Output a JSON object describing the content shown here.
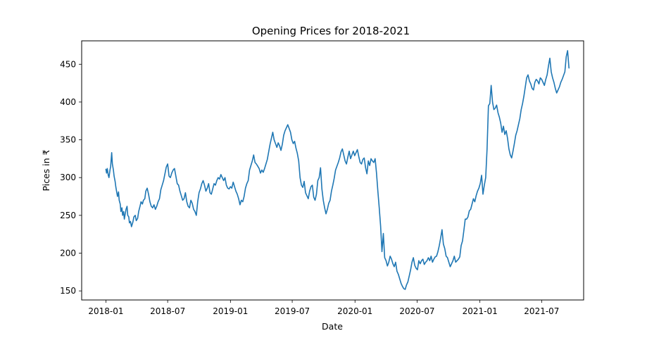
{
  "chart_data": {
    "type": "line",
    "title": "Opening Prices for 2018-2021",
    "xlabel": "Date",
    "ylabel": "Pices in ₹",
    "x_ticks": [
      "2018-01",
      "2018-07",
      "2019-01",
      "2019-07",
      "2020-01",
      "2020-07",
      "2021-01",
      "2021-07"
    ],
    "y_ticks": [
      150,
      200,
      250,
      300,
      350,
      400,
      450
    ],
    "xlim": [
      "2017-10-22",
      "2021-11-01"
    ],
    "ylim": [
      138,
      481
    ],
    "grid": false,
    "legend": "none",
    "line_color": "#1f77b4",
    "series": [
      {
        "x": [
          "2018-01-01",
          "2018-01-03",
          "2018-01-05",
          "2018-01-08",
          "2018-01-10",
          "2018-01-13",
          "2018-01-15",
          "2018-01-18",
          "2018-01-20",
          "2018-01-23",
          "2018-01-25",
          "2018-01-28",
          "2018-01-30",
          "2018-02-02",
          "2018-02-04",
          "2018-02-07",
          "2018-02-09",
          "2018-02-12",
          "2018-02-14",
          "2018-02-17",
          "2018-02-19",
          "2018-02-22",
          "2018-02-24",
          "2018-02-27",
          "2018-03-01",
          "2018-03-04",
          "2018-03-06",
          "2018-03-09",
          "2018-03-11",
          "2018-03-14",
          "2018-03-17",
          "2018-03-21",
          "2018-03-24",
          "2018-03-28",
          "2018-03-31",
          "2018-04-04",
          "2018-04-07",
          "2018-04-11",
          "2018-04-14",
          "2018-04-18",
          "2018-04-21",
          "2018-04-25",
          "2018-04-28",
          "2018-05-02",
          "2018-05-06",
          "2018-05-10",
          "2018-05-14",
          "2018-05-18",
          "2018-05-22",
          "2018-05-26",
          "2018-05-30",
          "2018-06-03",
          "2018-06-07",
          "2018-06-11",
          "2018-06-15",
          "2018-06-19",
          "2018-06-23",
          "2018-06-27",
          "2018-07-01",
          "2018-07-05",
          "2018-07-09",
          "2018-07-13",
          "2018-07-17",
          "2018-07-21",
          "2018-07-25",
          "2018-07-29",
          "2018-08-02",
          "2018-08-06",
          "2018-08-10",
          "2018-08-14",
          "2018-08-18",
          "2018-08-22",
          "2018-08-26",
          "2018-08-30",
          "2018-09-03",
          "2018-09-07",
          "2018-09-11",
          "2018-09-15",
          "2018-09-19",
          "2018-09-23",
          "2018-09-27",
          "2018-10-01",
          "2018-10-05",
          "2018-10-09",
          "2018-10-13",
          "2018-10-17",
          "2018-10-21",
          "2018-10-25",
          "2018-10-29",
          "2018-11-02",
          "2018-11-06",
          "2018-11-10",
          "2018-11-14",
          "2018-11-18",
          "2018-11-22",
          "2018-11-26",
          "2018-11-30",
          "2018-12-04",
          "2018-12-08",
          "2018-12-12",
          "2018-12-16",
          "2018-12-20",
          "2018-12-24",
          "2018-12-28",
          "2019-01-01",
          "2019-01-05",
          "2019-01-09",
          "2019-01-13",
          "2019-01-17",
          "2019-01-21",
          "2019-01-25",
          "2019-01-29",
          "2019-02-02",
          "2019-02-06",
          "2019-02-10",
          "2019-02-14",
          "2019-02-18",
          "2019-02-22",
          "2019-02-26",
          "2019-03-02",
          "2019-03-06",
          "2019-03-10",
          "2019-03-14",
          "2019-03-18",
          "2019-03-22",
          "2019-03-26",
          "2019-03-30",
          "2019-04-03",
          "2019-04-07",
          "2019-04-11",
          "2019-04-15",
          "2019-04-19",
          "2019-04-23",
          "2019-04-27",
          "2019-05-01",
          "2019-05-05",
          "2019-05-09",
          "2019-05-13",
          "2019-05-17",
          "2019-05-21",
          "2019-05-25",
          "2019-05-29",
          "2019-06-02",
          "2019-06-06",
          "2019-06-10",
          "2019-06-14",
          "2019-06-18",
          "2019-06-22",
          "2019-06-26",
          "2019-06-30",
          "2019-07-04",
          "2019-07-08",
          "2019-07-12",
          "2019-07-16",
          "2019-07-20",
          "2019-07-24",
          "2019-07-28",
          "2019-08-01",
          "2019-08-05",
          "2019-08-09",
          "2019-08-13",
          "2019-08-17",
          "2019-08-21",
          "2019-08-25",
          "2019-08-29",
          "2019-09-02",
          "2019-09-06",
          "2019-09-10",
          "2019-09-14",
          "2019-09-18",
          "2019-09-22",
          "2019-09-26",
          "2019-09-30",
          "2019-10-04",
          "2019-10-08",
          "2019-10-12",
          "2019-10-16",
          "2019-10-20",
          "2019-10-24",
          "2019-10-28",
          "2019-11-01",
          "2019-11-05",
          "2019-11-09",
          "2019-11-13",
          "2019-11-17",
          "2019-11-21",
          "2019-11-25",
          "2019-11-29",
          "2019-12-03",
          "2019-12-07",
          "2019-12-11",
          "2019-12-15",
          "2019-12-19",
          "2019-12-23",
          "2019-12-27",
          "2019-12-31",
          "2020-01-04",
          "2020-01-08",
          "2020-01-12",
          "2020-01-16",
          "2020-01-20",
          "2020-01-24",
          "2020-01-28",
          "2020-02-01",
          "2020-02-05",
          "2020-02-09",
          "2020-02-13",
          "2020-02-17",
          "2020-02-21",
          "2020-02-25",
          "2020-02-29",
          "2020-03-04",
          "2020-03-08",
          "2020-03-12",
          "2020-03-16",
          "2020-03-20",
          "2020-03-24",
          "2020-03-28",
          "2020-04-01",
          "2020-04-05",
          "2020-04-09",
          "2020-04-13",
          "2020-04-17",
          "2020-04-21",
          "2020-04-25",
          "2020-04-29",
          "2020-05-03",
          "2020-05-07",
          "2020-05-11",
          "2020-05-15",
          "2020-05-19",
          "2020-05-23",
          "2020-05-27",
          "2020-05-31",
          "2020-06-04",
          "2020-06-08",
          "2020-06-12",
          "2020-06-16",
          "2020-06-20",
          "2020-06-24",
          "2020-06-28",
          "2020-07-02",
          "2020-07-06",
          "2020-07-10",
          "2020-07-14",
          "2020-07-18",
          "2020-07-22",
          "2020-07-26",
          "2020-07-30",
          "2020-08-03",
          "2020-08-07",
          "2020-08-11",
          "2020-08-15",
          "2020-08-19",
          "2020-08-23",
          "2020-08-27",
          "2020-08-31",
          "2020-09-04",
          "2020-09-08",
          "2020-09-12",
          "2020-09-16",
          "2020-09-20",
          "2020-09-24",
          "2020-09-28",
          "2020-10-02",
          "2020-10-06",
          "2020-10-10",
          "2020-10-14",
          "2020-10-18",
          "2020-10-22",
          "2020-10-26",
          "2020-10-30",
          "2020-11-03",
          "2020-11-07",
          "2020-11-11",
          "2020-11-15",
          "2020-11-19",
          "2020-11-23",
          "2020-11-27",
          "2020-12-01",
          "2020-12-05",
          "2020-12-09",
          "2020-12-13",
          "2020-12-17",
          "2020-12-21",
          "2020-12-25",
          "2020-12-29",
          "2021-01-02",
          "2021-01-06",
          "2021-01-10",
          "2021-01-14",
          "2021-01-18",
          "2021-01-22",
          "2021-01-26",
          "2021-01-30",
          "2021-02-03",
          "2021-02-07",
          "2021-02-11",
          "2021-02-15",
          "2021-02-19",
          "2021-02-23",
          "2021-02-27",
          "2021-03-03",
          "2021-03-07",
          "2021-03-11",
          "2021-03-15",
          "2021-03-19",
          "2021-03-23",
          "2021-03-27",
          "2021-03-31",
          "2021-04-04",
          "2021-04-08",
          "2021-04-12",
          "2021-04-16",
          "2021-04-20",
          "2021-04-24",
          "2021-04-28",
          "2021-05-02",
          "2021-05-06",
          "2021-05-10",
          "2021-05-14",
          "2021-05-18",
          "2021-05-22",
          "2021-05-26",
          "2021-05-30",
          "2021-06-03",
          "2021-06-07",
          "2021-06-11",
          "2021-06-15",
          "2021-06-19",
          "2021-06-23",
          "2021-06-27",
          "2021-07-01",
          "2021-07-05",
          "2021-07-09",
          "2021-07-13",
          "2021-07-17",
          "2021-07-21",
          "2021-07-25",
          "2021-07-29",
          "2021-08-02",
          "2021-08-06",
          "2021-08-10",
          "2021-08-14",
          "2021-08-18",
          "2021-08-22",
          "2021-08-26",
          "2021-08-30",
          "2021-09-03",
          "2021-09-07",
          "2021-09-11",
          "2021-09-15",
          "2021-09-19"
        ],
        "y": [
          311,
          306,
          312,
          303,
          300,
          310,
          315,
          333,
          318,
          310,
          302,
          295,
          288,
          280,
          275,
          281,
          270,
          265,
          255,
          260,
          250,
          255,
          245,
          253,
          258,
          262,
          250,
          248,
          240,
          242,
          235,
          241,
          248,
          250,
          243,
          246,
          255,
          262,
          268,
          265,
          270,
          272,
          282,
          286,
          278,
          268,
          262,
          260,
          264,
          258,
          262,
          268,
          272,
          284,
          290,
          296,
          305,
          314,
          318,
          302,
          300,
          306,
          310,
          312,
          302,
          292,
          290,
          282,
          276,
          270,
          272,
          280,
          268,
          262,
          260,
          270,
          266,
          258,
          255,
          250,
          268,
          280,
          285,
          292,
          296,
          290,
          282,
          286,
          292,
          280,
          278,
          285,
          292,
          290,
          296,
          300,
          298,
          304,
          300,
          296,
          300,
          290,
          286,
          285,
          288,
          286,
          294,
          288,
          282,
          278,
          272,
          264,
          270,
          268,
          275,
          286,
          292,
          296,
          310,
          316,
          322,
          330,
          320,
          318,
          315,
          312,
          306,
          310,
          307,
          312,
          318,
          324,
          334,
          344,
          352,
          360,
          350,
          345,
          340,
          346,
          342,
          336,
          344,
          356,
          362,
          366,
          370,
          365,
          360,
          350,
          345,
          348,
          339,
          332,
          322,
          300,
          290,
          287,
          295,
          280,
          276,
          272,
          282,
          288,
          290,
          274,
          270,
          278,
          296,
          300,
          313,
          285,
          270,
          260,
          252,
          258,
          266,
          270,
          282,
          290,
          299,
          310,
          315,
          320,
          326,
          334,
          338,
          330,
          322,
          318,
          327,
          335,
          325,
          330,
          335,
          329,
          333,
          337,
          328,
          320,
          318,
          324,
          326,
          313,
          305,
          322,
          316,
          325,
          322,
          320,
          325,
          306,
          282,
          260,
          236,
          202,
          226,
          194,
          190,
          183,
          188,
          196,
          192,
          186,
          182,
          188,
          176,
          172,
          166,
          160,
          156,
          153,
          152,
          158,
          162,
          170,
          178,
          188,
          194,
          184,
          180,
          178,
          190,
          186,
          190,
          192,
          185,
          188,
          190,
          194,
          190,
          196,
          188,
          192,
          195,
          196,
          202,
          210,
          220,
          231,
          212,
          206,
          196,
          194,
          188,
          182,
          186,
          190,
          196,
          188,
          190,
          192,
          195,
          210,
          216,
          230,
          245,
          245,
          248,
          256,
          258,
          265,
          272,
          268,
          276,
          282,
          286,
          292,
          303,
          278,
          290,
          300,
          338,
          395,
          398,
          422,
          400,
          390,
          392,
          396,
          386,
          380,
          372,
          360,
          368,
          357,
          362,
          352,
          338,
          330,
          326,
          335,
          345,
          356,
          362,
          370,
          378,
          390,
          398,
          408,
          420,
          432,
          436,
          428,
          424,
          418,
          416,
          426,
          430,
          428,
          424,
          432,
          430,
          426,
          422,
          430,
          436,
          448,
          458,
          440,
          432,
          426,
          418,
          412,
          416,
          420,
          426,
          430,
          435,
          440,
          460,
          468,
          445
        ]
      }
    ]
  }
}
